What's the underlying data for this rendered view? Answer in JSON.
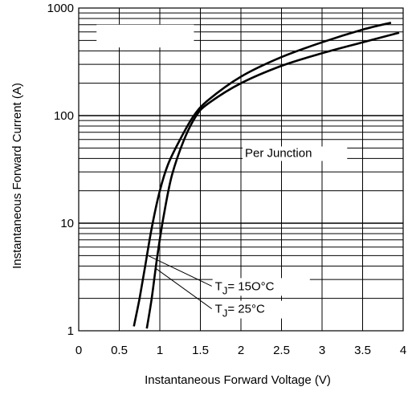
{
  "chart_data": {
    "type": "line",
    "title": "",
    "xlabel": "Instantaneous Forward Voltage (V)",
    "ylabel": "Instantaneous Forward Current (A)",
    "xlim": [
      0,
      4
    ],
    "ylim": [
      1,
      1000
    ],
    "yscale": "log",
    "grid": true,
    "x_ticks": [
      0,
      0.5,
      1,
      1.5,
      2,
      2.5,
      3,
      3.5,
      4
    ],
    "x_tick_labels": [
      "0",
      "0.5",
      "1",
      "1.5",
      "2",
      "2.5",
      "3",
      "3.5",
      "4"
    ],
    "y_ticks": [
      1,
      10,
      100,
      1000
    ],
    "y_tick_labels": [
      "1",
      "10",
      "100",
      "1000"
    ],
    "series": [
      {
        "name": "TJ = 150°C",
        "points": [
          [
            0.68,
            1.1
          ],
          [
            0.75,
            2
          ],
          [
            0.82,
            4
          ],
          [
            0.9,
            9
          ],
          [
            1.0,
            20
          ],
          [
            1.1,
            35
          ],
          [
            1.25,
            60
          ],
          [
            1.42,
            100
          ],
          [
            1.6,
            140
          ],
          [
            2.0,
            230
          ],
          [
            2.5,
            350
          ],
          [
            3.0,
            480
          ],
          [
            3.5,
            630
          ],
          [
            3.85,
            730
          ]
        ]
      },
      {
        "name": "TJ = 25°C",
        "points": [
          [
            0.84,
            1.05
          ],
          [
            0.9,
            2
          ],
          [
            0.97,
            5
          ],
          [
            1.05,
            12
          ],
          [
            1.15,
            28
          ],
          [
            1.3,
            60
          ],
          [
            1.45,
            100
          ],
          [
            1.6,
            130
          ],
          [
            2.0,
            200
          ],
          [
            2.5,
            290
          ],
          [
            3.0,
            380
          ],
          [
            3.5,
            480
          ],
          [
            3.95,
            590
          ]
        ]
      }
    ],
    "annotations": {
      "per_junction": "Per Junction",
      "t150_prefix": "T",
      "t150_sub": "J",
      "t150_rest": "= 15O°C",
      "t25_prefix": "T",
      "t25_sub": "J",
      "t25_rest": "= 25°C"
    }
  }
}
